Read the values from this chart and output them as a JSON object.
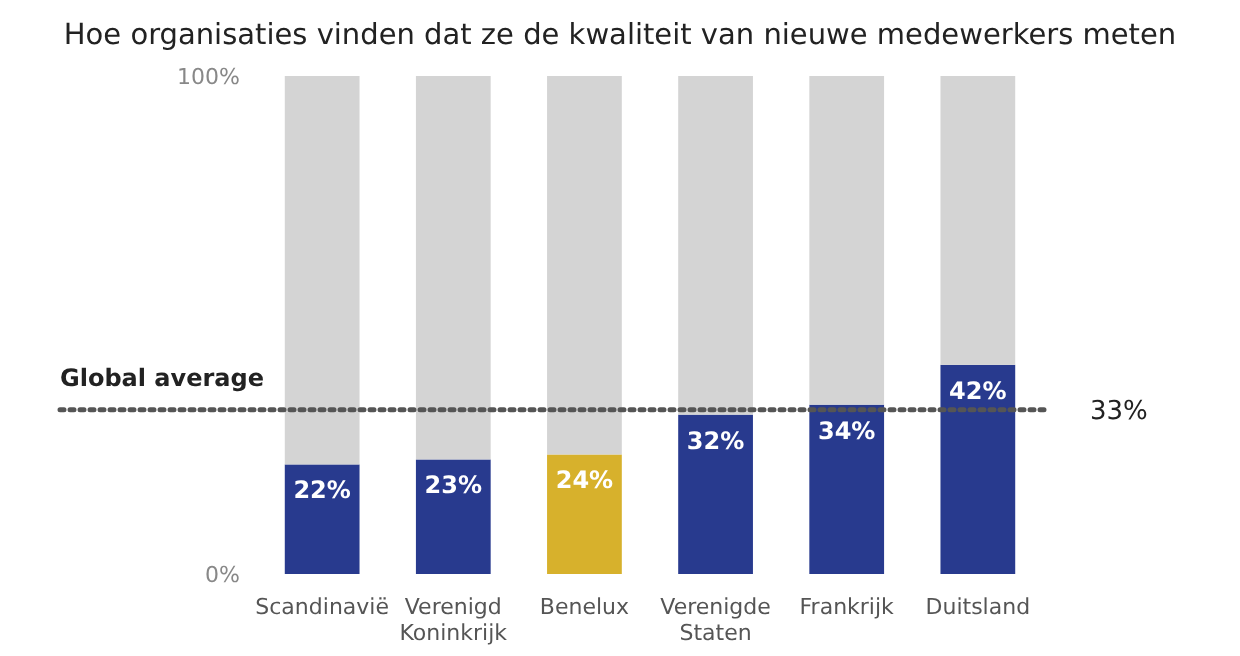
{
  "chart_data": {
    "type": "bar",
    "title": "Hoe organisaties vinden dat ze de kwaliteit van nieuwe medewerkers meten",
    "categories": [
      "Scandinavië",
      "Verenigd Koninkrijk",
      "Benelux",
      "Verenigde Staten",
      "Frankrijk",
      "Duitsland"
    ],
    "stacked": true,
    "series": [
      {
        "colors": [
          "#283a8e",
          "#283a8e",
          "#d7b12c",
          "#283a8e",
          "#283a8e",
          "#283a8e"
        ],
        "values": [
          22,
          23,
          24,
          32,
          34,
          42
        ],
        "value_labels": [
          "22%",
          "23%",
          "24%",
          "32%",
          "34%",
          "42%"
        ]
      },
      {
        "color": "#d4d4d4",
        "values": [
          78,
          77,
          76,
          68,
          66,
          58
        ]
      }
    ],
    "ylim": [
      0,
      100
    ],
    "yticks": [
      {
        "value": 0,
        "label": "0%"
      },
      {
        "value": 100,
        "label": "100%"
      }
    ],
    "ref_lines": [
      {
        "axis": "y",
        "value": 33,
        "label": "Global average",
        "color": "#555555",
        "line_style": "dotted"
      }
    ],
    "annotations": [
      "33%"
    ],
    "grid": false
  }
}
